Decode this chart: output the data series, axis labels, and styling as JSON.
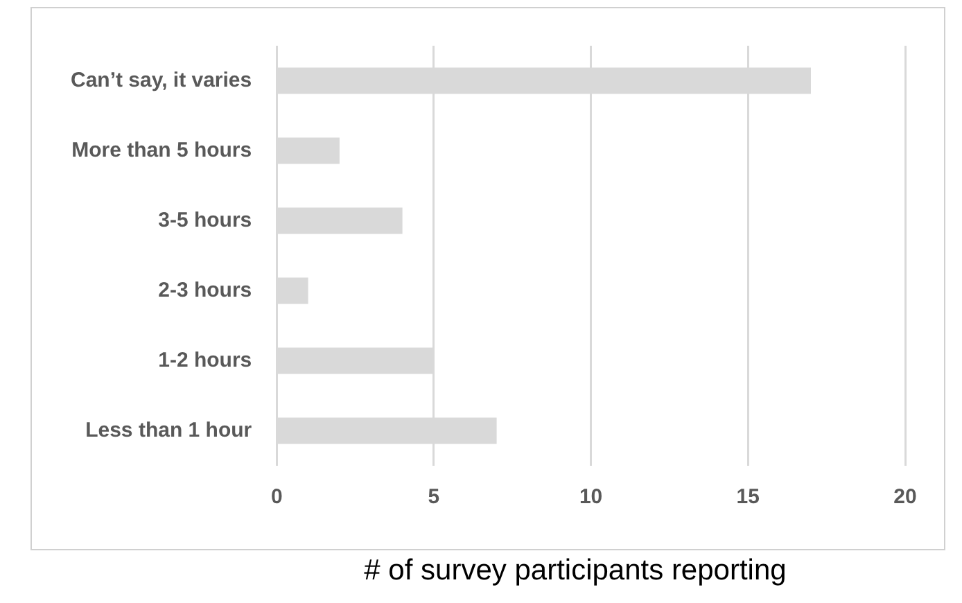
{
  "chart_data": {
    "type": "bar",
    "orientation": "horizontal",
    "xlabel": "# of survey participants reporting",
    "categories": [
      "Can’t say, it varies",
      "More than 5 hours",
      "3-5 hours",
      "2-3 hours",
      "1-2 hours",
      "Less than 1 hour"
    ],
    "values": [
      17,
      2,
      4,
      1,
      5,
      7
    ],
    "color": "#d9d9d9",
    "xlim": [
      0,
      20
    ],
    "xticks": [
      0,
      5,
      10,
      15,
      20
    ],
    "grid": "x",
    "legend": false
  }
}
